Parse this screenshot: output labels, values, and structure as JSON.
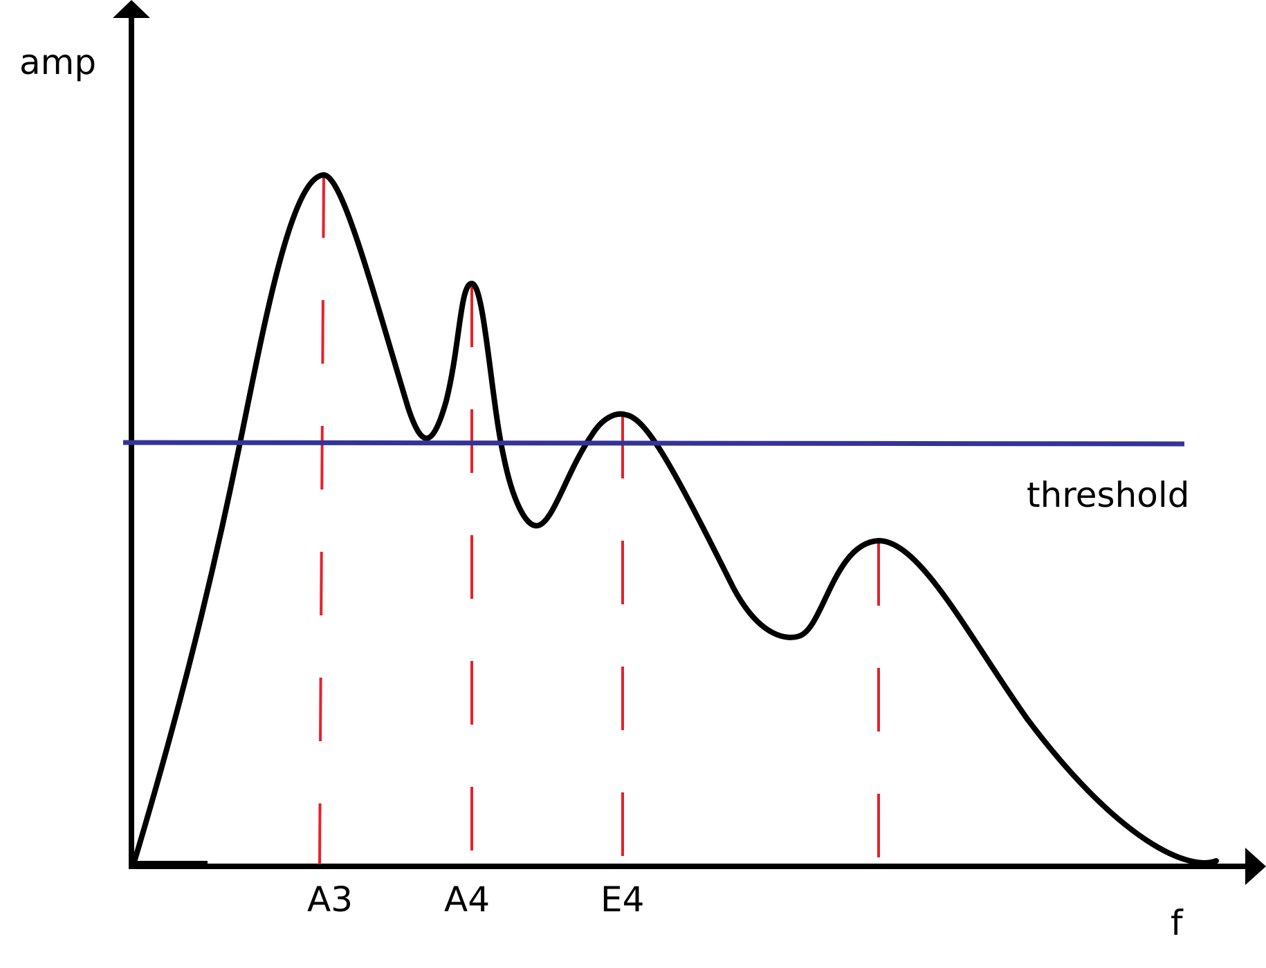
{
  "diagram": {
    "axes": {
      "y_label": "amp",
      "x_label": "f"
    },
    "threshold": {
      "label": "threshold",
      "color": "#333399"
    },
    "peak_marker_color": "#e8202a",
    "curve_color": "#000000",
    "note_labels": [
      "A3",
      "A4",
      "E4"
    ]
  }
}
